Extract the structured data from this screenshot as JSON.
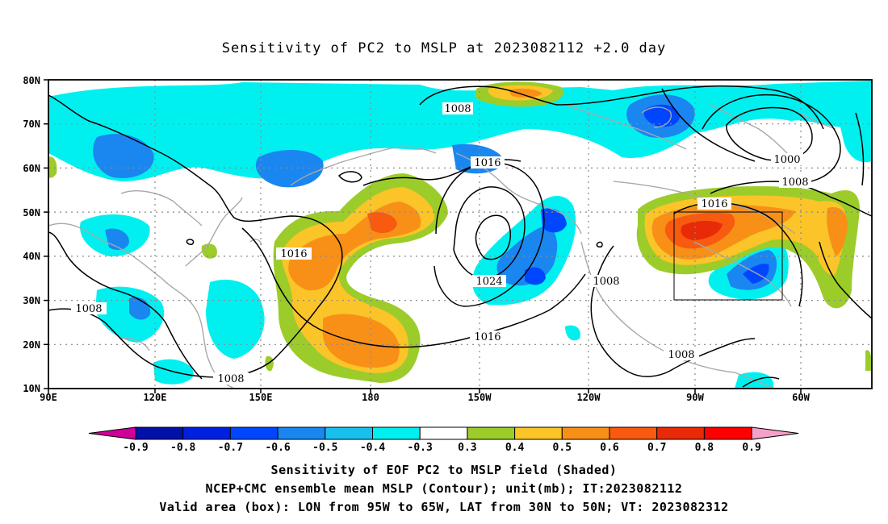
{
  "title": "Sensitivity of PC2 to MSLP at 2023082112 +2.0 day",
  "lat_ticks": [
    "80N",
    "70N",
    "60N",
    "50N",
    "40N",
    "30N",
    "20N",
    "10N"
  ],
  "lon_ticks": [
    "90E",
    "120E",
    "150E",
    "180",
    "150W",
    "120W",
    "90W",
    "60W"
  ],
  "contour_labels": [
    "1008",
    "1016",
    "1000",
    "1008",
    "1016",
    "1016",
    "1024",
    "1008",
    "1016",
    "1008",
    "1008",
    "1008"
  ],
  "colorbar": {
    "labels": [
      "-0.9",
      "-0.8",
      "-0.7",
      "-0.6",
      "-0.5",
      "-0.4",
      "-0.3",
      "0.3",
      "0.4",
      "0.5",
      "0.6",
      "0.7",
      "0.8",
      "0.9"
    ],
    "colors": [
      "#d0009a",
      "#0010a8",
      "#0020e0",
      "#0046ff",
      "#1a86f0",
      "#19c0ee",
      "#00f0f0",
      "#ffffff",
      "#9ccc2a",
      "#fbc428",
      "#f89018",
      "#f85a10",
      "#e82a08",
      "#ff0000",
      "#f4a0c8"
    ]
  },
  "footer": {
    "line1": "Sensitivity of EOF PC2 to MSLP field (Shaded)",
    "line2": "NCEP+CMC ensemble mean MSLP (Contour); unit(mb); IT:2023082112",
    "line3": "Valid area (box): LON from 95W to 65W, LAT from 30N to 50N; VT: 2023082312"
  }
}
